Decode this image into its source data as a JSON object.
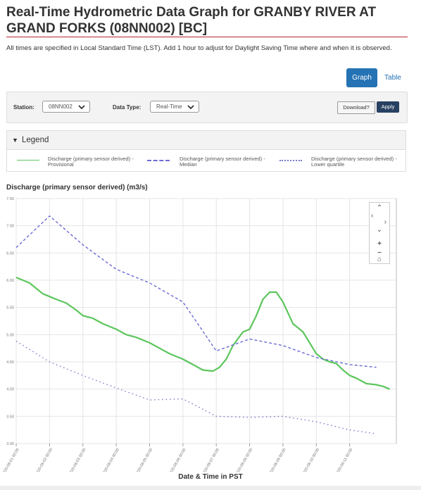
{
  "page": {
    "title": "Real-Time Hydrometric Data Graph for GRANBY RIVER AT GRAND FORKS (08NN002) [BC]",
    "note": "All times are specified in Local Standard Time (LST). Add 1 hour to adjust for Daylight Saving Time where and when it is observed."
  },
  "view_toggle": {
    "graph_label": "Graph",
    "table_label": "Table",
    "active": "Graph"
  },
  "filters": {
    "station_label": "Station:",
    "station_value": "08NN002",
    "datatype_label": "Data Type:",
    "datatype_value": "Real-Time",
    "download_label": "Download?",
    "apply_label": "Apply"
  },
  "legend": {
    "title": "Legend",
    "items": [
      {
        "label": "Discharge (primary sensor derived) - Provisional",
        "color": "#5cc65c",
        "style": "solid"
      },
      {
        "label": "Discharge (primary sensor derived) - Median",
        "color": "#6c6cd6",
        "style": "dashed"
      },
      {
        "label": "Discharge (primary sensor derived) - Lower quartile",
        "color": "#7777cc",
        "style": "dotted"
      }
    ]
  },
  "zoom_controls": [
    "chevron-up",
    "chevron-left",
    "chevron-right",
    "chevron-down",
    "zoom-in",
    "zoom-out",
    "home"
  ],
  "chart_data": {
    "type": "line",
    "title": "Discharge (primary sensor derived) (m3/s)",
    "xlabel": "Date & Time in PST",
    "ylabel": "",
    "ylim": [
      3.0,
      7.5
    ],
    "yticks": [
      "7.50",
      "7.00",
      "6.50",
      "6.00",
      "5.50",
      "5.00",
      "4.50",
      "4.00",
      "3.50",
      "3.00"
    ],
    "xlim": [
      0,
      11.4
    ],
    "xticks": [
      "2020-08-01 00:00",
      "2020-08-02 00:00",
      "2020-08-03 00:00",
      "2020-08-04 00:00",
      "2020-08-05 00:00",
      "2020-08-06 00:00",
      "2020-08-07 00:00",
      "2020-08-08 00:00",
      "2020-08-09 00:00",
      "2020-08-10 00:00",
      "2020-08-11 00:00"
    ],
    "grid": true,
    "series": [
      {
        "name": "Discharge (primary sensor derived) - Provisional",
        "style": "solid",
        "color": "#5cc65c",
        "x": [
          0,
          0.2,
          0.4,
          0.6,
          0.8,
          1.0,
          1.2,
          1.5,
          1.8,
          2.0,
          2.3,
          2.6,
          3.0,
          3.3,
          3.6,
          4.0,
          4.3,
          4.6,
          5.0,
          5.3,
          5.6,
          5.9,
          6.1,
          6.3,
          6.5,
          6.8,
          7.0,
          7.2,
          7.4,
          7.6,
          7.8,
          8.0,
          8.3,
          8.6,
          8.8,
          9.0,
          9.2,
          9.4,
          9.6,
          9.8,
          10.0,
          10.2,
          10.5,
          10.8,
          11.0,
          11.2
        ],
        "y": [
          6.05,
          6.0,
          5.95,
          5.85,
          5.75,
          5.7,
          5.65,
          5.58,
          5.45,
          5.35,
          5.3,
          5.2,
          5.1,
          5.0,
          4.95,
          4.85,
          4.75,
          4.65,
          4.55,
          4.45,
          4.35,
          4.33,
          4.4,
          4.55,
          4.8,
          5.05,
          5.1,
          5.35,
          5.65,
          5.78,
          5.78,
          5.6,
          5.2,
          5.05,
          4.85,
          4.65,
          4.55,
          4.5,
          4.47,
          4.35,
          4.25,
          4.2,
          4.1,
          4.08,
          4.05,
          4.0
        ]
      },
      {
        "name": "Discharge (primary sensor derived) - Median",
        "style": "dashed",
        "color": "#6c6cd6",
        "x": [
          0,
          1,
          2,
          3,
          4,
          5,
          6,
          7,
          8,
          9,
          10,
          10.8
        ],
        "y": [
          6.6,
          7.18,
          6.65,
          6.2,
          5.95,
          5.6,
          4.7,
          4.92,
          4.8,
          4.58,
          4.45,
          4.4
        ]
      },
      {
        "name": "Discharge (primary sensor derived) - Lower quartile",
        "style": "dotted",
        "color": "#7777cc",
        "x": [
          0,
          1,
          2,
          3,
          4,
          5,
          6,
          7,
          8,
          9,
          10,
          10.8
        ],
        "y": [
          4.88,
          4.5,
          4.25,
          4.02,
          3.8,
          3.82,
          3.5,
          3.48,
          3.5,
          3.4,
          3.25,
          3.18
        ]
      }
    ]
  }
}
